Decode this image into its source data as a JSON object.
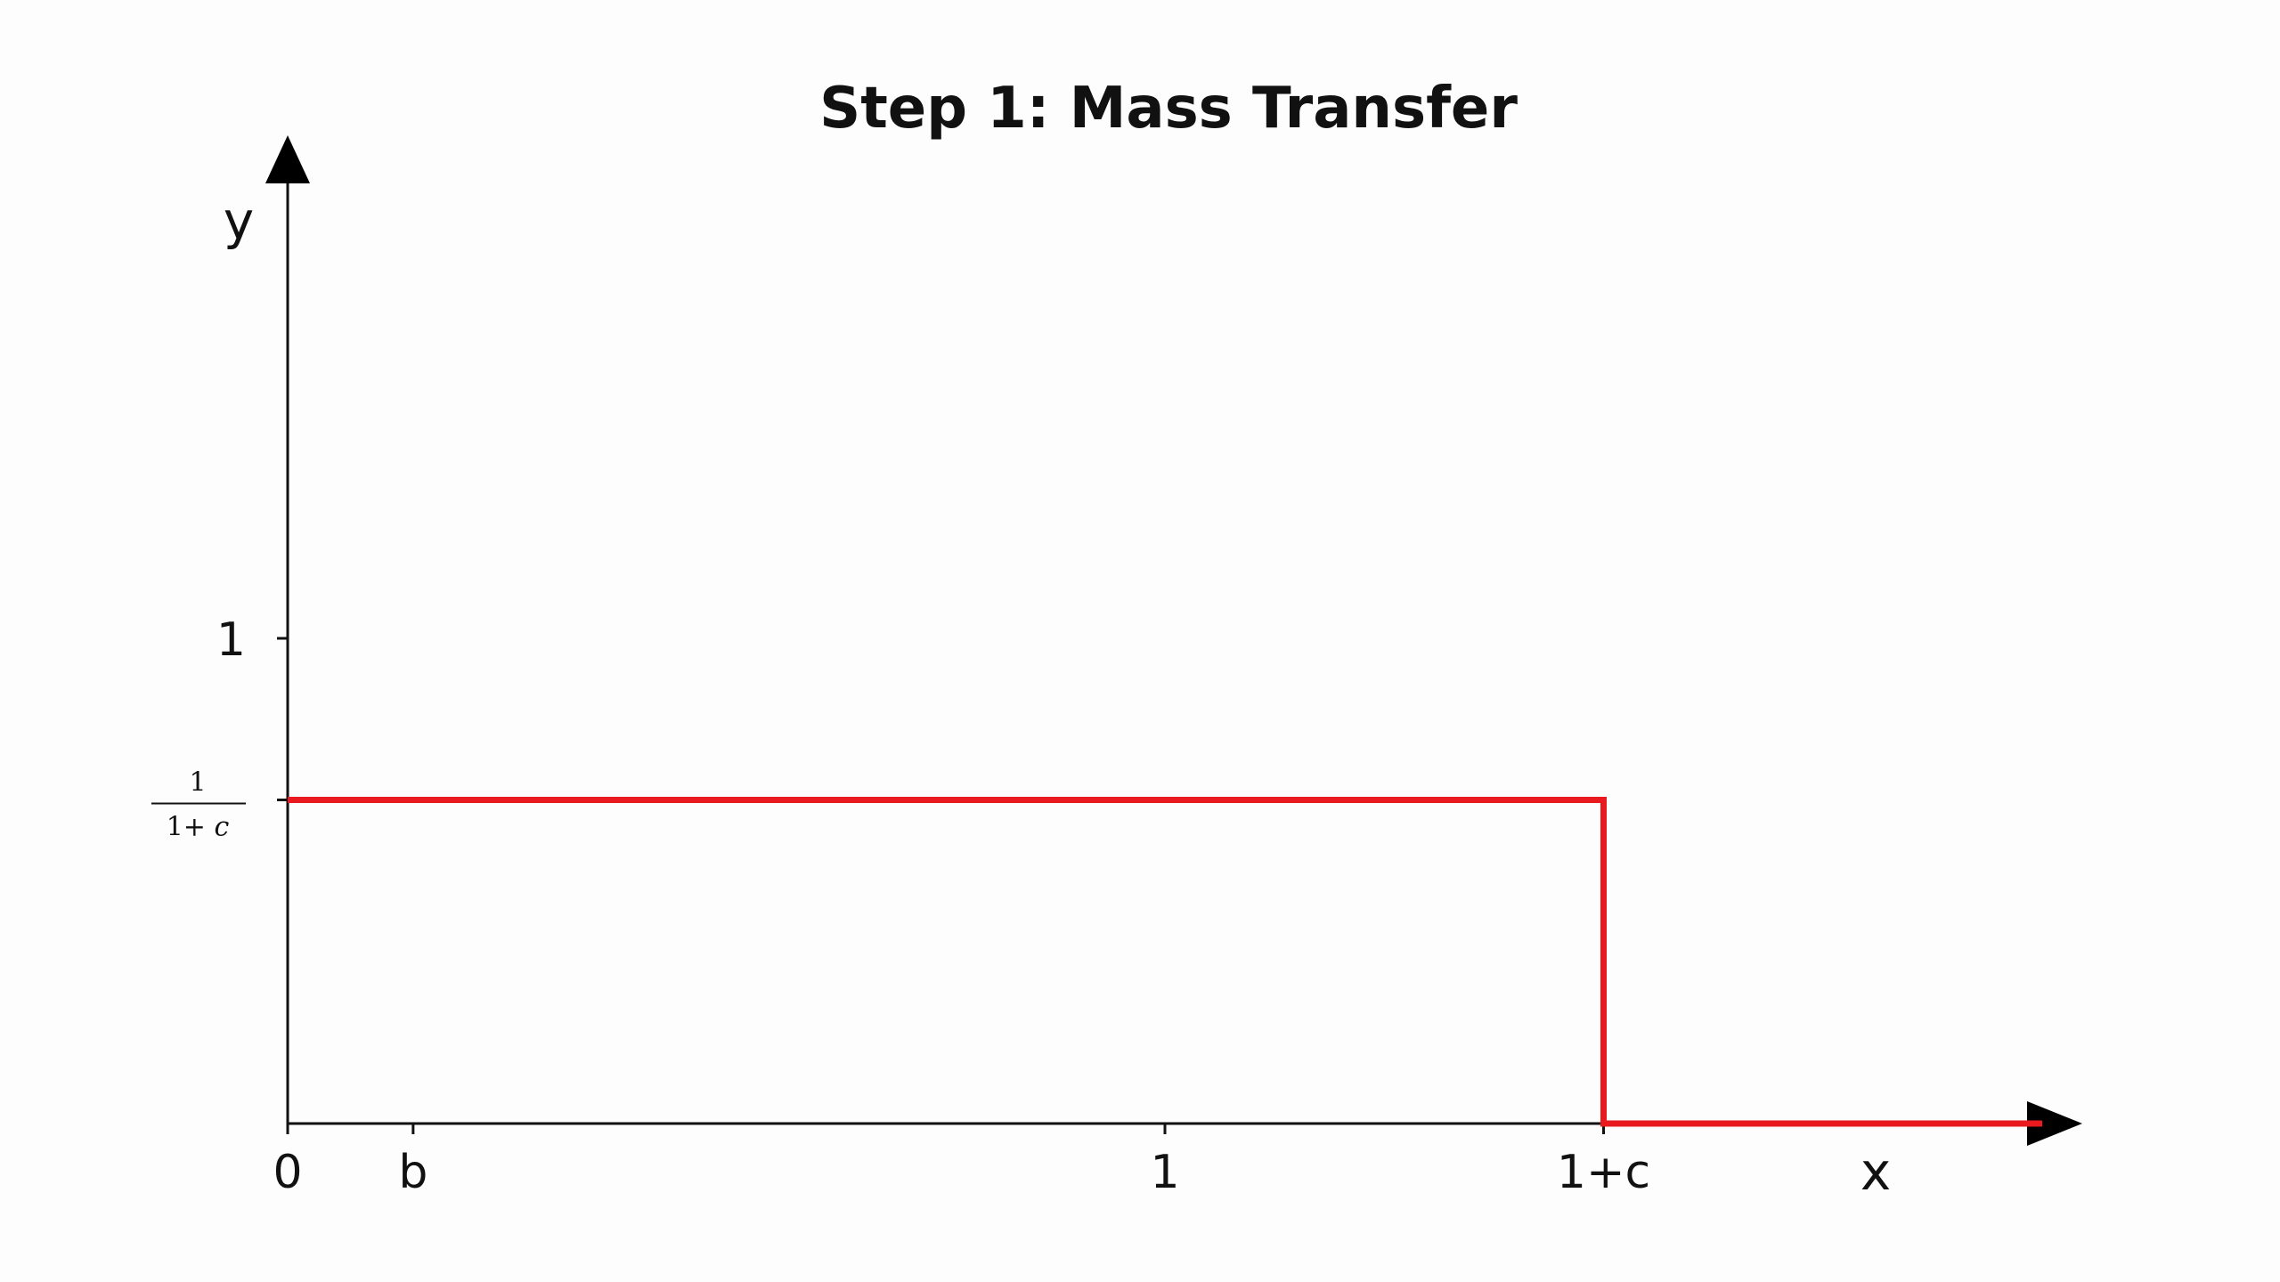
{
  "chart_data": {
    "type": "line",
    "title": "Step 1: Mass Transfer",
    "xlabel": "x",
    "ylabel": "y",
    "x_ticks": [
      {
        "value": 0,
        "label": "0"
      },
      {
        "value": 0.143,
        "label": "b"
      },
      {
        "value": 1,
        "label": "1"
      },
      {
        "value": 1.5,
        "label": "1+c"
      }
    ],
    "y_ticks": [
      {
        "value": 1,
        "label": "1"
      },
      {
        "value": 0.667,
        "label_numerator": "1",
        "label_denominator_a": "1+",
        "label_denominator_b": "c"
      }
    ],
    "xlim": [
      0,
      2.0
    ],
    "ylim": [
      0,
      2.0
    ],
    "grid": false,
    "axes_style": "arrows",
    "series": [
      {
        "color": "#e8191f",
        "x": [
          0,
          1.5,
          1.5,
          2.0
        ],
        "y": [
          0.667,
          0.667,
          0,
          0
        ]
      }
    ]
  }
}
